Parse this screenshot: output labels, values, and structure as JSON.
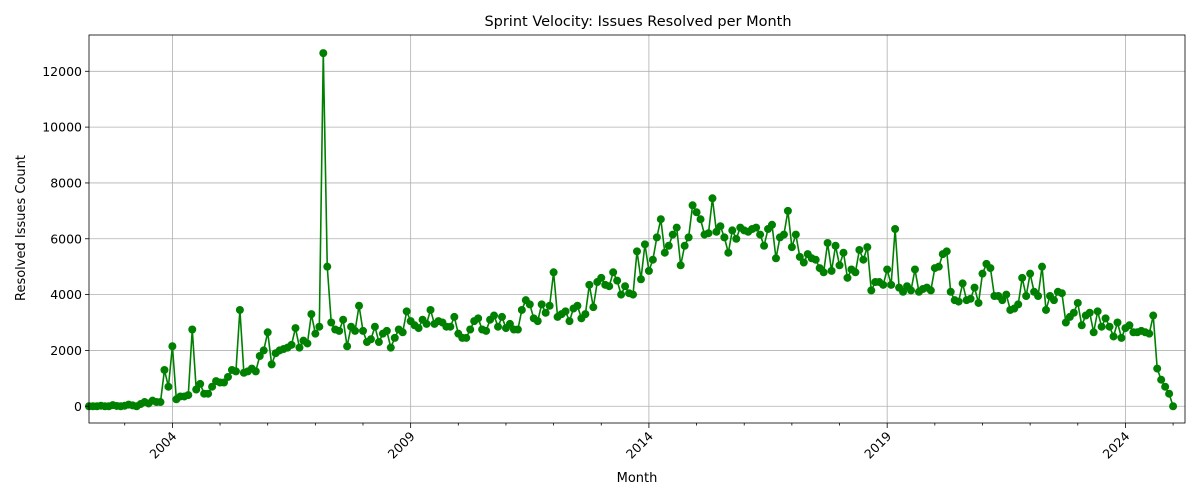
{
  "chart_data": {
    "type": "line",
    "title": "Sprint Velocity: Issues Resolved per Month",
    "xlabel": "Month",
    "ylabel": "Resolved Issues Count",
    "x_start": "2002-04",
    "xlim": [
      "2002-04",
      "2025-04"
    ],
    "ylim": [
      -600,
      13300
    ],
    "x_ticks": [
      "2004",
      "2009",
      "2014",
      "2019",
      "2024"
    ],
    "y_ticks": [
      0,
      2000,
      4000,
      6000,
      8000,
      10000,
      12000
    ],
    "grid": true,
    "color": "#008000",
    "series": [
      {
        "values": [
          0,
          0,
          0,
          20,
          0,
          0,
          40,
          10,
          0,
          20,
          60,
          30,
          0,
          80,
          150,
          100,
          200,
          150,
          150,
          1300,
          700,
          2150,
          250,
          350,
          350,
          400,
          2750,
          600,
          800,
          450,
          450,
          700,
          900,
          850,
          850,
          1050,
          1300,
          1250,
          3450,
          1200,
          1250,
          1350,
          1250,
          1800,
          2000,
          2650,
          1500,
          1900,
          2000,
          2050,
          2100,
          2200,
          2800,
          2100,
          2350,
          2250,
          3300,
          2600,
          2850,
          12650,
          5000,
          3000,
          2750,
          2700,
          3100,
          2150,
          2850,
          2700,
          3600,
          2700,
          2300,
          2400,
          2850,
          2300,
          2600,
          2700,
          2100,
          2450,
          2750,
          2650,
          3400,
          3050,
          2900,
          2800,
          3100,
          2950,
          3450,
          2950,
          3050,
          3000,
          2850,
          2850,
          3200,
          2600,
          2450,
          2450,
          2750,
          3050,
          3150,
          2750,
          2700,
          3100,
          3250,
          2850,
          3200,
          2800,
          2950,
          2750,
          2750,
          3450,
          3800,
          3650,
          3150,
          3050,
          3650,
          3350,
          3600,
          4800,
          3200,
          3300,
          3400,
          3050,
          3500,
          3600,
          3150,
          3300,
          4350,
          3550,
          4450,
          4600,
          4350,
          4300,
          4800,
          4500,
          4000,
          4300,
          4050,
          4000,
          5550,
          4550,
          5800,
          4850,
          5250,
          6050,
          6700,
          5500,
          5750,
          6150,
          6400,
          5050,
          5750,
          6050,
          7200,
          6950,
          6700,
          6150,
          6200,
          7450,
          6250,
          6450,
          6050,
          5500,
          6300,
          6000,
          6400,
          6300,
          6250,
          6350,
          6400,
          6150,
          5750,
          6350,
          6500,
          5300,
          6050,
          6150,
          7000,
          5700,
          6150,
          5350,
          5150,
          5450,
          5300,
          5250,
          4950,
          4800,
          5850,
          4850,
          5750,
          5050,
          5500,
          4600,
          4900,
          4800,
          5600,
          5250,
          5700,
          4150,
          4450,
          4450,
          4350,
          4900,
          4350,
          6350,
          4250,
          4100,
          4300,
          4150,
          4900,
          4100,
          4200,
          4250,
          4150,
          4950,
          5000,
          5450,
          5550,
          4100,
          3800,
          3750,
          4400,
          3800,
          3850,
          4250,
          3700,
          4750,
          5100,
          4950,
          3950,
          3950,
          3800,
          4000,
          3450,
          3500,
          3650,
          4600,
          3950,
          4750,
          4100,
          3950,
          5000,
          3450,
          3950,
          3800,
          4100,
          4050,
          3000,
          3200,
          3350,
          3700,
          2900,
          3250,
          3350,
          2650,
          3400,
          2850,
          3150,
          2850,
          2500,
          3000,
          2450,
          2800,
          2900,
          2650,
          2650,
          2700,
          2650,
          2600,
          3250,
          1350,
          950,
          700,
          450,
          0
        ]
      }
    ]
  }
}
